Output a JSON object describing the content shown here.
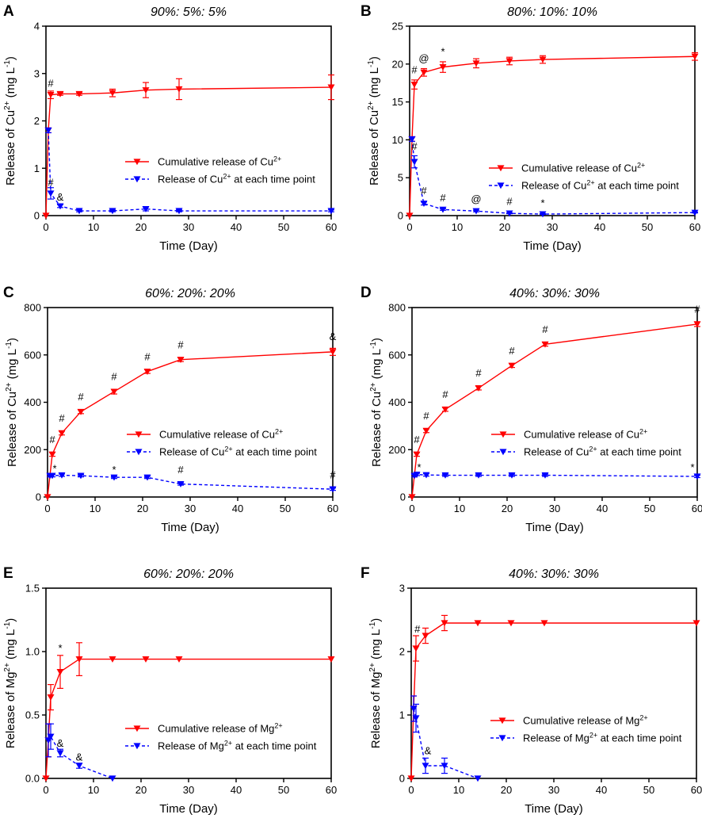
{
  "chart_data": [
    {
      "id": "A",
      "type": "line",
      "letter": "A",
      "title": "90%: 5%: 5%",
      "xlabel": "Time (Day)",
      "ylabel_main": "Release of Cu",
      "ylabel_sup": "2+",
      "ylabel_unit": " (mg L",
      "ylabel_unit_sup": "-1",
      "ylabel_close": ")",
      "xlim": [
        0,
        60
      ],
      "ylim": [
        0,
        4
      ],
      "xticks": [
        0,
        10,
        20,
        30,
        40,
        50,
        60
      ],
      "yticks": [
        0,
        1,
        2,
        3,
        4
      ],
      "series": [
        {
          "name": "Cumulative release of Cu2+",
          "legend_main": "Cumulative release of Cu",
          "legend_sup": "2+",
          "legend_tail": "",
          "color": "#ff0000",
          "style": "solid",
          "x": [
            0,
            0.5,
            1,
            3,
            7,
            14,
            21,
            28,
            60
          ],
          "y": [
            0,
            1.8,
            2.55,
            2.57,
            2.57,
            2.59,
            2.65,
            2.67,
            2.71
          ],
          "err": [
            0,
            0.05,
            0.08,
            0.03,
            0.03,
            0.08,
            0.16,
            0.22,
            0.26
          ]
        },
        {
          "name": "Release of Cu2+ at each time point",
          "legend_main": "Release of Cu",
          "legend_sup": "2+",
          "legend_tail": " at each time point",
          "color": "#0000ff",
          "style": "dashed",
          "x": [
            0.5,
            1,
            3,
            7,
            14,
            21,
            28,
            60
          ],
          "y": [
            1.8,
            0.47,
            0.2,
            0.1,
            0.1,
            0.14,
            0.1,
            0.1
          ],
          "err": [
            0.05,
            0.12,
            0.03,
            0.02,
            0.02,
            0.04,
            0.02,
            0.02
          ]
        }
      ],
      "annotations": [
        {
          "text": "#",
          "x": 1,
          "y": 2.72
        },
        {
          "text": "#",
          "x": 1,
          "y": 0.63
        },
        {
          "text": "&",
          "x": 3,
          "y": 0.32
        }
      ],
      "legend": "center-right"
    },
    {
      "id": "B",
      "type": "line",
      "letter": "B",
      "title": "80%: 10%: 10%",
      "xlabel": "Time (Day)",
      "ylabel_main": "Release of Cu",
      "ylabel_sup": "2+",
      "ylabel_unit": " (mg L",
      "ylabel_unit_sup": "-1",
      "ylabel_close": ")",
      "xlim": [
        0,
        60
      ],
      "ylim": [
        0,
        25
      ],
      "xticks": [
        0,
        10,
        20,
        30,
        40,
        50,
        60
      ],
      "yticks": [
        0,
        5,
        10,
        15,
        20,
        25
      ],
      "series": [
        {
          "name": "Cumulative release of Cu2+",
          "legend_main": "Cumulative release of Cu",
          "legend_sup": "2+",
          "legend_tail": "",
          "color": "#ff0000",
          "style": "solid",
          "x": [
            0,
            0.5,
            1,
            3,
            7,
            14,
            21,
            28,
            60
          ],
          "y": [
            0,
            10.1,
            17.3,
            18.9,
            19.6,
            20.1,
            20.4,
            20.6,
            21.0
          ],
          "err": [
            0,
            0.3,
            0.6,
            0.5,
            0.7,
            0.6,
            0.5,
            0.5,
            0.5
          ]
        },
        {
          "name": "Release of Cu2+ at each time point",
          "legend_main": "Release of Cu",
          "legend_sup": "2+",
          "legend_tail": " at each time point",
          "color": "#0000ff",
          "style": "dashed",
          "x": [
            0.5,
            1,
            3,
            7,
            14,
            21,
            28,
            60
          ],
          "y": [
            10.1,
            7.1,
            1.6,
            0.8,
            0.6,
            0.3,
            0.2,
            0.4
          ],
          "err": [
            0.3,
            0.8,
            0.2,
            0.1,
            0.1,
            0.05,
            0.05,
            0.05
          ]
        }
      ],
      "annotations": [
        {
          "text": "#",
          "x": 1,
          "y": 18.8
        },
        {
          "text": "@",
          "x": 3,
          "y": 20.3
        },
        {
          "text": "*",
          "x": 7,
          "y": 21.2
        },
        {
          "text": "#",
          "x": 1,
          "y": 8.7
        },
        {
          "text": "#",
          "x": 3,
          "y": 2.8
        },
        {
          "text": "#",
          "x": 7,
          "y": 1.9
        },
        {
          "text": "@",
          "x": 14,
          "y": 1.7
        },
        {
          "text": "#",
          "x": 21,
          "y": 1.4
        },
        {
          "text": "*",
          "x": 28,
          "y": 1.2
        }
      ],
      "legend": "center-right"
    },
    {
      "id": "C",
      "type": "line",
      "letter": "C",
      "title": "60%: 20%: 20%",
      "xlabel": "Time (Day)",
      "ylabel_main": "Release of Cu",
      "ylabel_sup": "2+",
      "ylabel_unit": " (mg L",
      "ylabel_unit_sup": "-1",
      "ylabel_close": ")",
      "xlim": [
        0,
        60
      ],
      "ylim": [
        0,
        800
      ],
      "xticks": [
        0,
        10,
        20,
        30,
        40,
        50,
        60
      ],
      "yticks": [
        0,
        200,
        400,
        600,
        800
      ],
      "series": [
        {
          "name": "Cumulative release of Cu2+",
          "legend_main": "Cumulative release of Cu",
          "legend_sup": "2+",
          "legend_tail": "",
          "color": "#ff0000",
          "style": "solid",
          "x": [
            0,
            0.5,
            1,
            3,
            7,
            14,
            21,
            28,
            60
          ],
          "y": [
            0,
            90,
            180,
            270,
            360,
            445,
            530,
            580,
            613
          ],
          "err": [
            0,
            5,
            8,
            8,
            8,
            10,
            8,
            8,
            15
          ]
        },
        {
          "name": "Release of Cu2+ at each time point",
          "legend_main": "Release of Cu",
          "legend_sup": "2+",
          "legend_tail": " at each time point",
          "color": "#0000ff",
          "style": "dashed",
          "x": [
            0.5,
            1,
            3,
            7,
            14,
            21,
            28,
            60
          ],
          "y": [
            90,
            90,
            92,
            90,
            83,
            83,
            55,
            33
          ],
          "err": [
            5,
            5,
            5,
            5,
            5,
            5,
            5,
            5
          ]
        }
      ],
      "annotations": [
        {
          "text": "#",
          "x": 1,
          "y": 228
        },
        {
          "text": "#",
          "x": 3,
          "y": 318
        },
        {
          "text": "#",
          "x": 7,
          "y": 408
        },
        {
          "text": "#",
          "x": 14,
          "y": 493
        },
        {
          "text": "#",
          "x": 21,
          "y": 578
        },
        {
          "text": "#",
          "x": 28,
          "y": 628
        },
        {
          "text": "&",
          "x": 60,
          "y": 662
        },
        {
          "text": "*",
          "x": 1.5,
          "y": 105
        },
        {
          "text": "*",
          "x": 14,
          "y": 100
        },
        {
          "text": "#",
          "x": 28,
          "y": 100
        },
        {
          "text": "#",
          "x": 60,
          "y": 78
        }
      ],
      "legend": "center-right"
    },
    {
      "id": "D",
      "type": "line",
      "letter": "D",
      "title": "40%: 30%: 30%",
      "xlabel": "Time (Day)",
      "ylabel_main": "Release of Cu",
      "ylabel_sup": "2+",
      "ylabel_unit": " (mg L",
      "ylabel_unit_sup": "-1",
      "ylabel_close": ")",
      "xlim": [
        0,
        60
      ],
      "ylim": [
        0,
        800
      ],
      "xticks": [
        0,
        10,
        20,
        30,
        40,
        50,
        60
      ],
      "yticks": [
        0,
        200,
        400,
        600,
        800
      ],
      "series": [
        {
          "name": "Cumulative release of Cu2+",
          "legend_main": "Cumulative release of Cu",
          "legend_sup": "2+",
          "legend_tail": "",
          "color": "#ff0000",
          "style": "solid",
          "x": [
            0,
            0.5,
            1,
            3,
            7,
            14,
            21,
            28,
            60
          ],
          "y": [
            0,
            90,
            180,
            280,
            370,
            460,
            555,
            645,
            730
          ],
          "err": [
            0,
            5,
            8,
            8,
            8,
            8,
            8,
            8,
            10
          ]
        },
        {
          "name": "Release of Cu2+ at each time point",
          "legend_main": "Release of Cu",
          "legend_sup": "2+",
          "legend_tail": " at each time point",
          "color": "#0000ff",
          "style": "dashed",
          "x": [
            0.5,
            1,
            3,
            7,
            14,
            21,
            28,
            60
          ],
          "y": [
            90,
            95,
            93,
            92,
            92,
            92,
            92,
            87
          ],
          "err": [
            5,
            5,
            5,
            5,
            5,
            5,
            5,
            5
          ]
        }
      ],
      "annotations": [
        {
          "text": "#",
          "x": 1,
          "y": 228
        },
        {
          "text": "#",
          "x": 3,
          "y": 328
        },
        {
          "text": "#",
          "x": 7,
          "y": 418
        },
        {
          "text": "#",
          "x": 14,
          "y": 508
        },
        {
          "text": "#",
          "x": 21,
          "y": 603
        },
        {
          "text": "#",
          "x": 28,
          "y": 693
        },
        {
          "text": "#",
          "x": 60,
          "y": 778
        },
        {
          "text": "*",
          "x": 1.5,
          "y": 110
        },
        {
          "text": "*",
          "x": 59,
          "y": 110
        }
      ],
      "legend": "center-right"
    },
    {
      "id": "E",
      "type": "line",
      "letter": "E",
      "title": "60%: 20%: 20%",
      "xlabel": "Time (Day)",
      "ylabel_main": "Release of Mg",
      "ylabel_sup": "2+",
      "ylabel_unit": " (mg L",
      "ylabel_unit_sup": "-1",
      "ylabel_close": ")",
      "xlim": [
        0,
        60
      ],
      "ylim": [
        0,
        1.5
      ],
      "xticks": [
        0,
        10,
        20,
        30,
        40,
        50,
        60
      ],
      "yticks": [
        0.0,
        0.5,
        1.0,
        1.5
      ],
      "ytick_decimals": 1,
      "series": [
        {
          "name": "Cumulative release of Mg2+",
          "legend_main": "Cumulative release of Mg",
          "legend_sup": "2+",
          "legend_tail": "",
          "color": "#ff0000",
          "style": "solid",
          "x": [
            0,
            0.5,
            1,
            3,
            7,
            14,
            21,
            28,
            60
          ],
          "y": [
            0,
            0.3,
            0.64,
            0.84,
            0.94,
            0.94,
            0.94,
            0.94,
            0.94
          ],
          "err": [
            0,
            0.13,
            0.1,
            0.13,
            0.13,
            0,
            0,
            0,
            0
          ]
        },
        {
          "name": "Release of Mg2+ at each time point",
          "legend_main": "Release of Mg",
          "legend_sup": "2+",
          "legend_tail": " at each time point",
          "color": "#0000ff",
          "style": "dashed",
          "x": [
            0.5,
            1,
            3,
            7,
            14
          ],
          "y": [
            0.3,
            0.33,
            0.2,
            0.1,
            0.0
          ],
          "err": [
            0.13,
            0.1,
            0.03,
            0.02,
            0
          ]
        }
      ],
      "annotations": [
        {
          "text": "*",
          "x": 3,
          "y": 1.0
        },
        {
          "text": "&",
          "x": 3,
          "y": 0.25
        },
        {
          "text": "&",
          "x": 7,
          "y": 0.14
        }
      ],
      "legend": "center-right"
    },
    {
      "id": "F",
      "type": "line",
      "letter": "F",
      "title": "40%: 30%: 30%",
      "xlabel": "Time (Day)",
      "ylabel_main": "Release of Mg",
      "ylabel_sup": "2+",
      "ylabel_unit": " (mg L",
      "ylabel_unit_sup": "-1",
      "ylabel_close": ")",
      "xlim": [
        0,
        60
      ],
      "ylim": [
        0,
        3
      ],
      "xticks": [
        0,
        10,
        20,
        30,
        40,
        50,
        60
      ],
      "yticks": [
        0,
        1,
        2,
        3
      ],
      "series": [
        {
          "name": "Cumulative release of Mg2+",
          "legend_main": "Cumulative release of Mg",
          "legend_sup": "2+",
          "legend_tail": "",
          "color": "#ff0000",
          "style": "solid",
          "x": [
            0,
            0.5,
            1,
            3,
            7,
            14,
            21,
            28,
            60
          ],
          "y": [
            0,
            1.1,
            2.05,
            2.25,
            2.45,
            2.45,
            2.45,
            2.45,
            2.45
          ],
          "err": [
            0,
            0.2,
            0.2,
            0.12,
            0.12,
            0,
            0,
            0,
            0
          ]
        },
        {
          "name": "Release of Mg2+ at each time point",
          "legend_main": "Release of Mg",
          "legend_sup": "2+",
          "legend_tail": " at each time point",
          "color": "#0000ff",
          "style": "dashed",
          "x": [
            0.5,
            1,
            3,
            7,
            14
          ],
          "y": [
            1.1,
            0.95,
            0.2,
            0.2,
            0.0
          ],
          "err": [
            0.2,
            0.22,
            0.12,
            0.12,
            0
          ]
        }
      ],
      "annotations": [
        {
          "text": "#",
          "x": 1.3,
          "y": 2.3
        },
        {
          "text": "&",
          "x": 3.5,
          "y": 0.38
        }
      ],
      "legend": "center-right"
    }
  ]
}
